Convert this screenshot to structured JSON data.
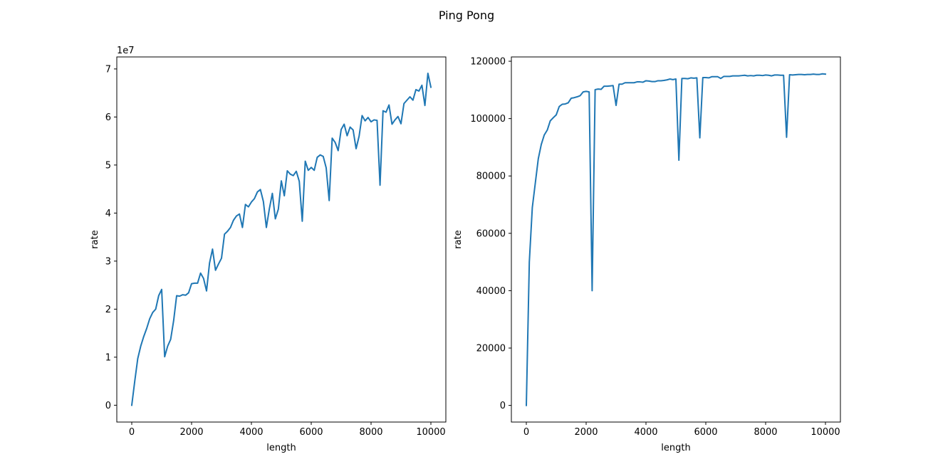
{
  "figure": {
    "suptitle": "Ping Pong"
  },
  "colors": {
    "line": "#1f77b4",
    "axis": "#000000",
    "background": "#ffffff"
  },
  "chart_data": [
    {
      "type": "line",
      "xlabel": "length",
      "ylabel": "rate",
      "offset_text": "1e7",
      "xlim": [
        -500,
        10500
      ],
      "ylim": [
        -3500000,
        72500000
      ],
      "x_ticks": [
        0,
        2000,
        4000,
        6000,
        8000,
        10000
      ],
      "y_ticks": [
        0,
        10000000,
        20000000,
        30000000,
        40000000,
        50000000,
        60000000,
        70000000
      ],
      "x_tick_labels": [
        "0",
        "2000",
        "4000",
        "6000",
        "8000",
        "10000"
      ],
      "y_tick_labels": [
        "0",
        "1",
        "2",
        "3",
        "4",
        "5",
        "6",
        "7"
      ],
      "grid": false,
      "series": [
        {
          "x": [
            0,
            100,
            200,
            300,
            400,
            500,
            600,
            700,
            800,
            900,
            1000,
            1100,
            1200,
            1300,
            1400,
            1500,
            1600,
            1700,
            1800,
            1900,
            2000,
            2100,
            2200,
            2300,
            2400,
            2500,
            2600,
            2700,
            2800,
            2900,
            3000,
            3100,
            3200,
            3300,
            3400,
            3500,
            3600,
            3700,
            3800,
            3900,
            4000,
            4100,
            4200,
            4300,
            4400,
            4500,
            4600,
            4700,
            4800,
            4900,
            5000,
            5100,
            5200,
            5300,
            5400,
            5500,
            5600,
            5700,
            5800,
            5900,
            6000,
            6100,
            6200,
            6300,
            6400,
            6500,
            6600,
            6700,
            6800,
            6900,
            7000,
            7100,
            7200,
            7300,
            7400,
            7500,
            7600,
            7700,
            7800,
            7900,
            8000,
            8100,
            8200,
            8300,
            8400,
            8500,
            8600,
            8700,
            8800,
            8900,
            9000,
            9100,
            9200,
            9300,
            9400,
            9500,
            9600,
            9700,
            9800,
            9900,
            10000
          ],
          "y": [
            0,
            5000000,
            9700000,
            12300000,
            14300000,
            16000000,
            18000000,
            19300000,
            20000000,
            22800000,
            24100000,
            10100000,
            12300000,
            13700000,
            17600000,
            22800000,
            22700000,
            23000000,
            22900000,
            23400000,
            25300000,
            25400000,
            25400000,
            27500000,
            26400000,
            23800000,
            29600000,
            32500000,
            28100000,
            29400000,
            30600000,
            35600000,
            36200000,
            37000000,
            38500000,
            39400000,
            39800000,
            37000000,
            41800000,
            41300000,
            42300000,
            43000000,
            44400000,
            44900000,
            42400000,
            37000000,
            40900000,
            44100000,
            38800000,
            40800000,
            46700000,
            43600000,
            48800000,
            48100000,
            47800000,
            48700000,
            46600000,
            38300000,
            50800000,
            48900000,
            49500000,
            48900000,
            51600000,
            52100000,
            51800000,
            49400000,
            42600000,
            55600000,
            54700000,
            53000000,
            57400000,
            58500000,
            56100000,
            57900000,
            57300000,
            53400000,
            56000000,
            60300000,
            59200000,
            59900000,
            59000000,
            59400000,
            59300000,
            45800000,
            61300000,
            61000000,
            62500000,
            58500000,
            59400000,
            60100000,
            58600000,
            62800000,
            63500000,
            64200000,
            63500000,
            65700000,
            65400000,
            66600000,
            62400000,
            69100000,
            66200000
          ]
        }
      ]
    },
    {
      "type": "line",
      "xlabel": "length",
      "ylabel": "rate",
      "xlim": [
        -500,
        10500
      ],
      "ylim": [
        -5800,
        121500
      ],
      "x_ticks": [
        0,
        2000,
        4000,
        6000,
        8000,
        10000
      ],
      "y_ticks": [
        0,
        20000,
        40000,
        60000,
        80000,
        100000,
        120000
      ],
      "x_tick_labels": [
        "0",
        "2000",
        "4000",
        "6000",
        "8000",
        "10000"
      ],
      "y_tick_labels": [
        "0",
        "20000",
        "40000",
        "60000",
        "80000",
        "100000",
        "120000"
      ],
      "grid": false,
      "series": [
        {
          "x": [
            0,
            100,
            200,
            300,
            400,
            500,
            600,
            700,
            800,
            900,
            1000,
            1100,
            1200,
            1300,
            1400,
            1500,
            1600,
            1700,
            1800,
            1900,
            2000,
            2100,
            2200,
            2300,
            2400,
            2500,
            2600,
            2700,
            2800,
            2900,
            3000,
            3100,
            3200,
            3300,
            3400,
            3500,
            3600,
            3700,
            3800,
            3900,
            4000,
            4100,
            4200,
            4300,
            4400,
            4500,
            4600,
            4700,
            4800,
            4900,
            5000,
            5100,
            5200,
            5300,
            5400,
            5500,
            5600,
            5700,
            5800,
            5900,
            6000,
            6100,
            6200,
            6300,
            6400,
            6500,
            6600,
            6700,
            6800,
            6900,
            7000,
            7100,
            7200,
            7300,
            7400,
            7500,
            7600,
            7700,
            7800,
            7900,
            8000,
            8100,
            8200,
            8300,
            8400,
            8500,
            8600,
            8700,
            8800,
            8900,
            9000,
            9100,
            9200,
            9300,
            9400,
            9500,
            9600,
            9700,
            9800,
            9900,
            10000
          ],
          "y": [
            0,
            50000,
            69000,
            77500,
            86000,
            91000,
            94300,
            96000,
            99200,
            100300,
            101300,
            104200,
            105000,
            105100,
            105500,
            107100,
            107300,
            107600,
            108000,
            109300,
            109500,
            109300,
            40000,
            110100,
            110300,
            110200,
            111300,
            111300,
            111400,
            111500,
            104600,
            112000,
            112000,
            112500,
            112500,
            112500,
            112500,
            112800,
            112800,
            112700,
            113200,
            113100,
            112900,
            112900,
            113200,
            113200,
            113300,
            113500,
            113800,
            113600,
            113800,
            85500,
            114000,
            114000,
            113900,
            114200,
            114100,
            114200,
            93300,
            114300,
            114300,
            114200,
            114600,
            114600,
            114600,
            114000,
            114700,
            114700,
            114700,
            114900,
            114900,
            114900,
            115000,
            115100,
            114900,
            115000,
            114900,
            115100,
            115100,
            115000,
            115200,
            115100,
            114900,
            115200,
            115200,
            115100,
            115100,
            93500,
            115300,
            115200,
            115300,
            115400,
            115400,
            115300,
            115400,
            115400,
            115500,
            115400,
            115400,
            115600,
            115500
          ]
        }
      ]
    }
  ]
}
